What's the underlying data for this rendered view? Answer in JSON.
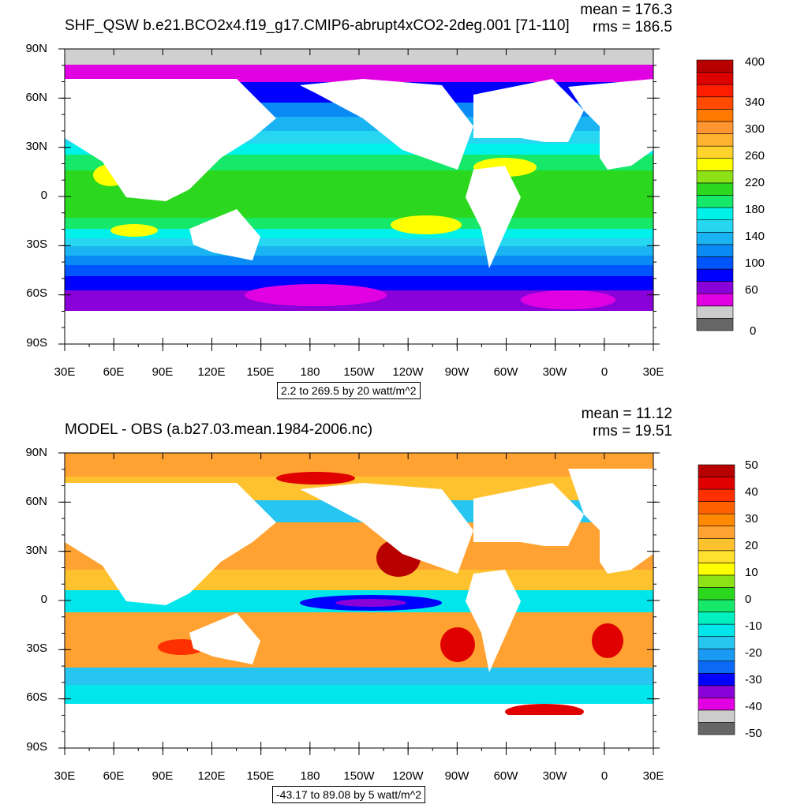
{
  "panels": [
    {
      "title": "SHF_QSW b.e21.BCO2x4.f19_g17.CMIP6-abrupt4xCO2-2deg.001 [71-110]",
      "mean_text": "mean = 176.3",
      "rms_text": "rms = 186.5",
      "range_text": "2.2 to 269.5 by 20 watt/m^2",
      "lat_labels": [
        "90N",
        "60N",
        "30N",
        "0",
        "30S",
        "60S",
        "90S"
      ],
      "lon_labels": [
        "30E",
        "60E",
        "90E",
        "120E",
        "150E",
        "180",
        "150W",
        "120W",
        "90W",
        "60W",
        "30W",
        "0",
        "30E"
      ],
      "colorbar_labels": [
        "400",
        "340",
        "300",
        "260",
        "220",
        "180",
        "140",
        "100",
        "60",
        "0"
      ],
      "colorbar_colors": [
        "#666666",
        "#cccccc",
        "#e100e1",
        "#8a00d8",
        "#0000ff",
        "#0055ff",
        "#0a8af5",
        "#1ab4f2",
        "#27d6f0",
        "#00f0ea",
        "#16e86a",
        "#2bd81d",
        "#8ce216",
        "#ffff00",
        "#ffd22c",
        "#ffb22f",
        "#ff9631",
        "#ff7a00",
        "#ff4a00",
        "#ff1d00",
        "#dd0000",
        "#b80000"
      ]
    },
    {
      "title": "MODEL - OBS (a.b27.03.mean.1984-2006.nc)",
      "mean_text": "mean = 11.12",
      "rms_text": "rms = 19.51",
      "range_text": "-43.17 to 89.08 by 5 watt/m^2",
      "lat_labels": [
        "90N",
        "60N",
        "30N",
        "0",
        "30S",
        "60S",
        "90S"
      ],
      "lon_labels": [
        "30E",
        "60E",
        "90E",
        "120E",
        "150E",
        "180",
        "150W",
        "120W",
        "90W",
        "60W",
        "30W",
        "0",
        "30E"
      ],
      "colorbar_labels": [
        "50",
        "40",
        "30",
        "20",
        "10",
        "0",
        "-10",
        "-20",
        "-30",
        "-40",
        "-50"
      ],
      "colorbar_colors": [
        "#666666",
        "#cccccc",
        "#e100e1",
        "#8a00d8",
        "#0000ff",
        "#0a6af5",
        "#1a9af2",
        "#27c6f0",
        "#00e6ea",
        "#00f0c0",
        "#16e86a",
        "#2bd81d",
        "#8ce216",
        "#ffff00",
        "#ffe02c",
        "#ffc22f",
        "#ffa231",
        "#ff8a00",
        "#ff6000",
        "#ff3000",
        "#e10000",
        "#b80000"
      ]
    }
  ],
  "colors": {
    "land": "#ffffff",
    "sea_ice": "#d0d0d0"
  }
}
